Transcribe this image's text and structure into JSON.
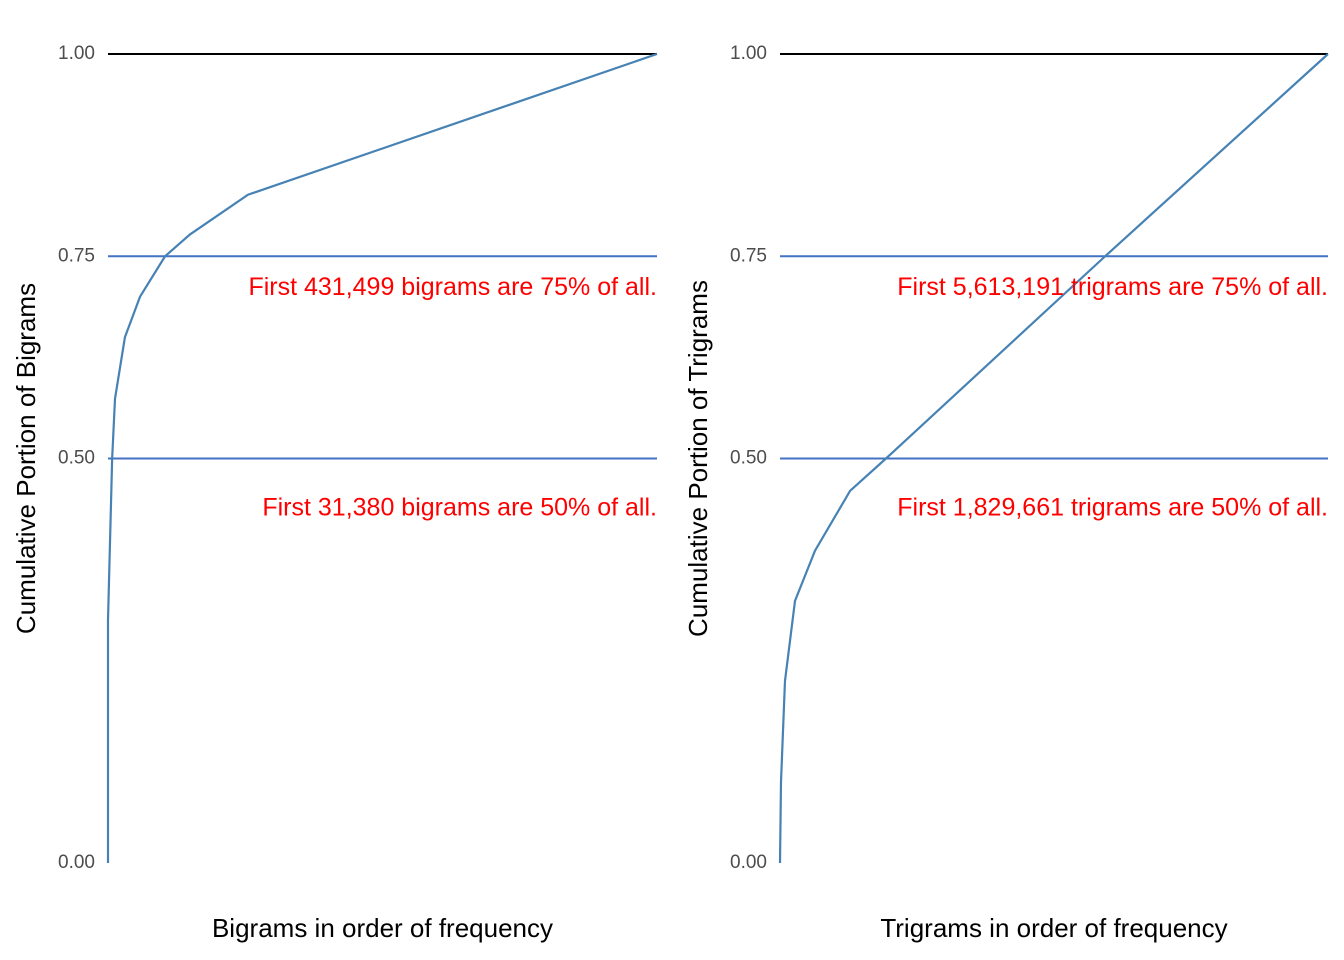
{
  "chart_data": [
    {
      "type": "line",
      "x_label": "Bigrams in order of frequency",
      "y_label": "Cumulative Portion of Bigrams",
      "x": [
        0,
        1,
        31380,
        53000,
        128000,
        242000,
        431499,
        620000,
        1058000,
        4150000
      ],
      "series": [
        {
          "color": "#4682b4",
          "values": [
            0,
            0.3,
            0.5,
            0.574,
            0.65,
            0.7,
            0.75,
            0.777,
            0.826,
            1.0
          ]
        }
      ],
      "xlim": [
        0,
        4150000
      ],
      "ylim": [
        0,
        1
      ],
      "yticks": [
        {
          "value": 0,
          "label": "0.00"
        },
        {
          "value": 0.5,
          "label": "0.50"
        },
        {
          "value": 0.75,
          "label": "0.75"
        },
        {
          "value": 1,
          "label": "1.00"
        }
      ],
      "hlines": [
        {
          "value": 1,
          "color": "#000000"
        },
        {
          "value": 0.75,
          "color": "#4472c4"
        },
        {
          "value": 0.5,
          "color": "#4472c4"
        }
      ],
      "annotations": [
        {
          "text": "First  431,499  bigrams are 75% of all.",
          "y": 0.71
        },
        {
          "text": "First  31,380  bigrams are 50% of all.",
          "y": 0.438
        }
      ],
      "annotation_color": "#ff0000"
    },
    {
      "type": "line",
      "x_label": "Trigrams in order of frequency",
      "y_label": "Cumulative Portion of Trigrams",
      "x": [
        0,
        17000,
        86000,
        259000,
        604000,
        1210000,
        1829661,
        5613191,
        9460000
      ],
      "series": [
        {
          "color": "#4682b4",
          "values": [
            0,
            0.1,
            0.225,
            0.324,
            0.386,
            0.46,
            0.5,
            0.75,
            1.0
          ]
        }
      ],
      "xlim": [
        0,
        9460000
      ],
      "ylim": [
        0,
        1
      ],
      "yticks": [
        {
          "value": 0,
          "label": "0.00"
        },
        {
          "value": 0.5,
          "label": "0.50"
        },
        {
          "value": 0.75,
          "label": "0.75"
        },
        {
          "value": 1,
          "label": "1.00"
        }
      ],
      "hlines": [
        {
          "value": 1,
          "color": "#000000"
        },
        {
          "value": 0.75,
          "color": "#4472c4"
        },
        {
          "value": 0.5,
          "color": "#4472c4"
        }
      ],
      "annotations": [
        {
          "text": "First  5,613,191  trigrams are 75% of all.",
          "y": 0.71
        },
        {
          "text": "First  1,829,661  trigrams are 50% of all.",
          "y": 0.438
        }
      ],
      "annotation_color": "#ff0000"
    }
  ]
}
